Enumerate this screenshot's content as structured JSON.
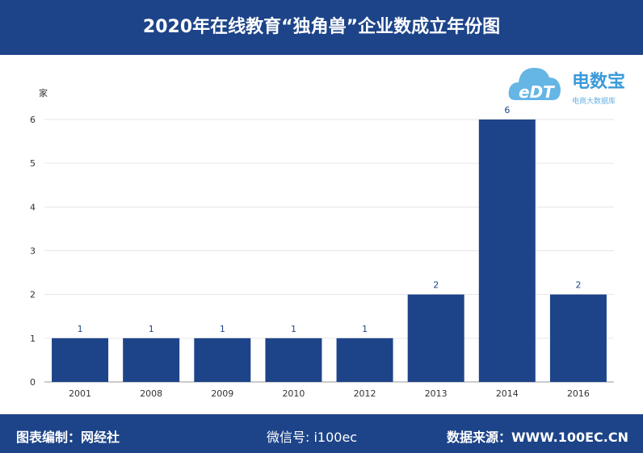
{
  "title": "2020年在线教育“独角兽”企业数成立年份图",
  "footer": {
    "credit": "图表编制：网经社",
    "source": "数据来源：WWW.100EC.CN",
    "wechat": "微信号: i100ec"
  },
  "logo": {
    "brand": "电数宝",
    "sub": "电商大数据库",
    "mark": "eDT"
  },
  "chart_data": {
    "type": "bar",
    "title": "2020年在线教育“独角兽”企业数成立年份图",
    "ylabel": "家",
    "xlabel": "",
    "categories": [
      "2001",
      "2008",
      "2009",
      "2010",
      "2012",
      "2013",
      "2014",
      "2016"
    ],
    "values": [
      1,
      1,
      1,
      1,
      1,
      2,
      6,
      2
    ],
    "ylim": [
      0,
      6
    ],
    "yticks": [
      0,
      1,
      2,
      3,
      4,
      5,
      6
    ],
    "grid": true,
    "bar_color": "#1d4489"
  }
}
